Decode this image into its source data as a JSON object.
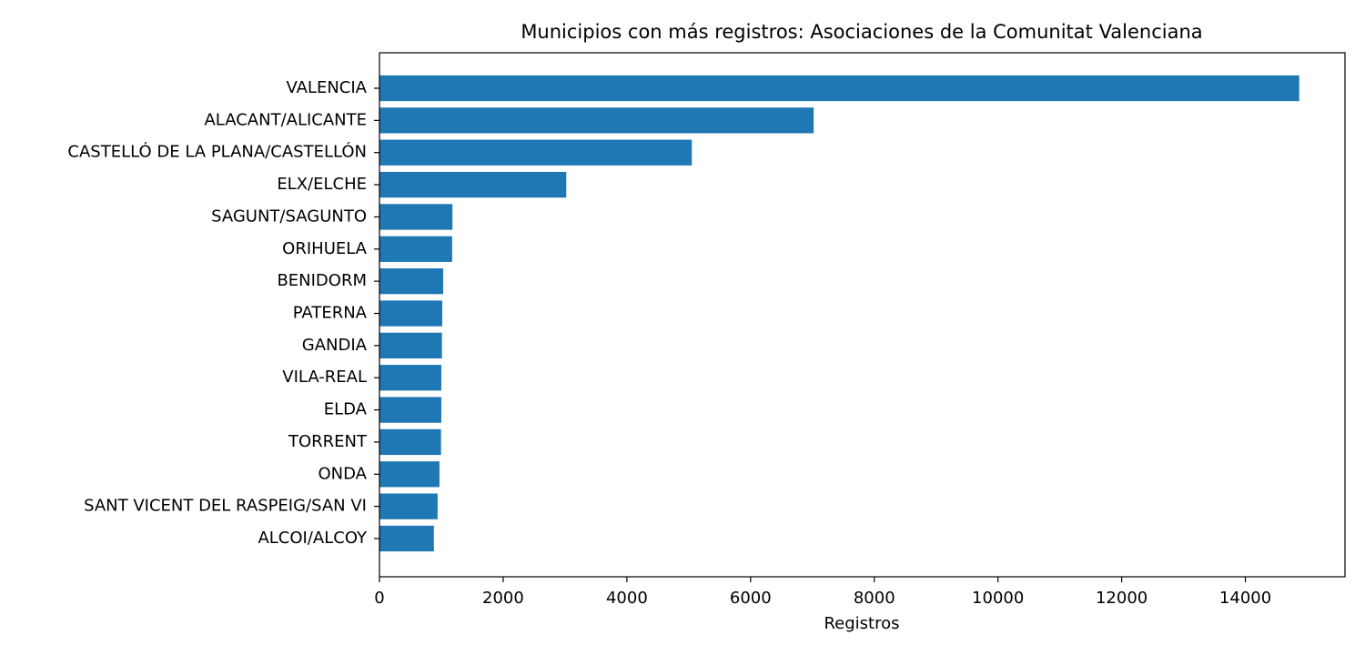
{
  "chart_data": {
    "type": "barh",
    "title": "Municipios con más registros: Asociaciones de la Comunitat Valenciana",
    "x_label": "Registros",
    "categories": [
      "VALENCIA",
      "ALACANT/ALICANTE",
      "CASTELLÓ DE LA PLANA/CASTELLÓN",
      "ELX/ELCHE",
      "SAGUNT/SAGUNTO",
      "ORIHUELA",
      "BENIDORM",
      "PATERNA",
      "GANDIA",
      "VILA-REAL",
      "ELDA",
      "TORRENT",
      "ONDA",
      "SANT VICENT DEL RASPEIG/SAN VI",
      "ALCOI/ALCOY"
    ],
    "values": [
      14870,
      7020,
      5050,
      3020,
      1180,
      1175,
      1030,
      1015,
      1010,
      1000,
      1000,
      995,
      970,
      940,
      880
    ],
    "color": "#1f77b4",
    "xlim": [
      0,
      15610
    ],
    "xticks": [
      0,
      2000,
      4000,
      6000,
      8000,
      10000,
      12000,
      14000
    ]
  }
}
